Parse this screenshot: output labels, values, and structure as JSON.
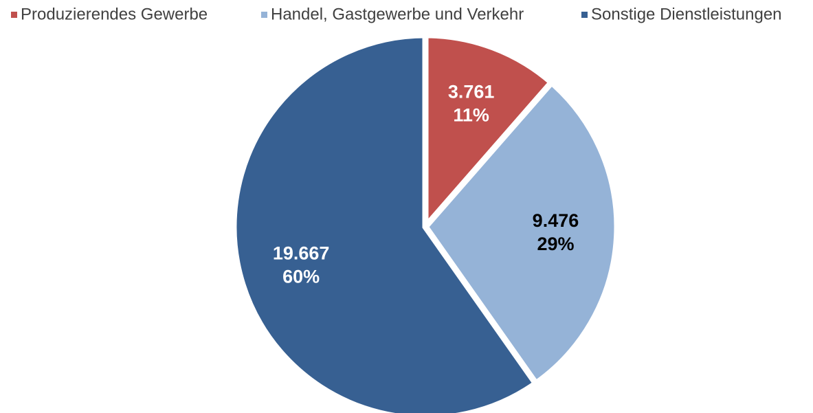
{
  "chart_data": {
    "type": "pie",
    "categories": [
      "Produzierendes Gewerbe",
      "Handel, Gastgewerbe und Verkehr",
      "Sonstige Dienstleistungen"
    ],
    "values": [
      3761,
      9476,
      19667
    ],
    "value_labels": [
      "3.761",
      "9.476",
      "19.667"
    ],
    "percentages": [
      11,
      29,
      60
    ],
    "percentage_labels": [
      "11%",
      "29%",
      "60%"
    ],
    "colors": [
      "#c0504d",
      "#95b3d7",
      "#376092"
    ],
    "label_colors": [
      "#ffffff",
      "#000000",
      "#ffffff"
    ],
    "legend": "top"
  }
}
